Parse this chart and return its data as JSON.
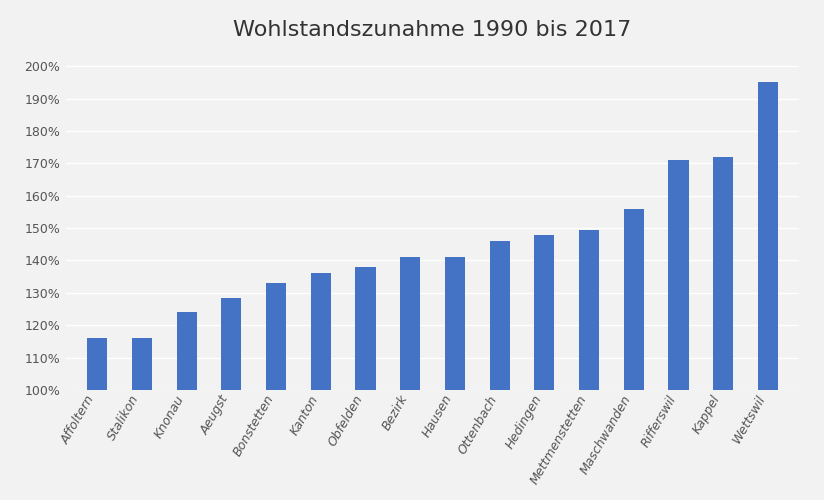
{
  "title": "Wohlstandszunahme 1990 bis 2017",
  "categories": [
    "Affoltern",
    "Stalikon",
    "Knonau",
    "Aeugst",
    "Bonstetten",
    "Kanton",
    "Obfelden",
    "Bezirk",
    "Hausen",
    "Ottenbach",
    "Hedingen",
    "Mettmenstetten",
    "Maschwanden",
    "Rifferswil",
    "Kappel",
    "Wettswil"
  ],
  "values": [
    116,
    116,
    124,
    128.5,
    133,
    136,
    138,
    141,
    141,
    146,
    148,
    149.5,
    156,
    171,
    172,
    195
  ],
  "bar_color": "#4472C4",
  "ylim_min": 100,
  "ylim_max": 205,
  "yticks": [
    100,
    110,
    120,
    130,
    140,
    150,
    160,
    170,
    180,
    190,
    200
  ],
  "background_color": "#F2F2F2",
  "plot_bg_color": "#F2F2F2",
  "grid_color": "#FFFFFF",
  "title_fontsize": 16,
  "tick_fontsize": 9,
  "bar_width": 0.45
}
